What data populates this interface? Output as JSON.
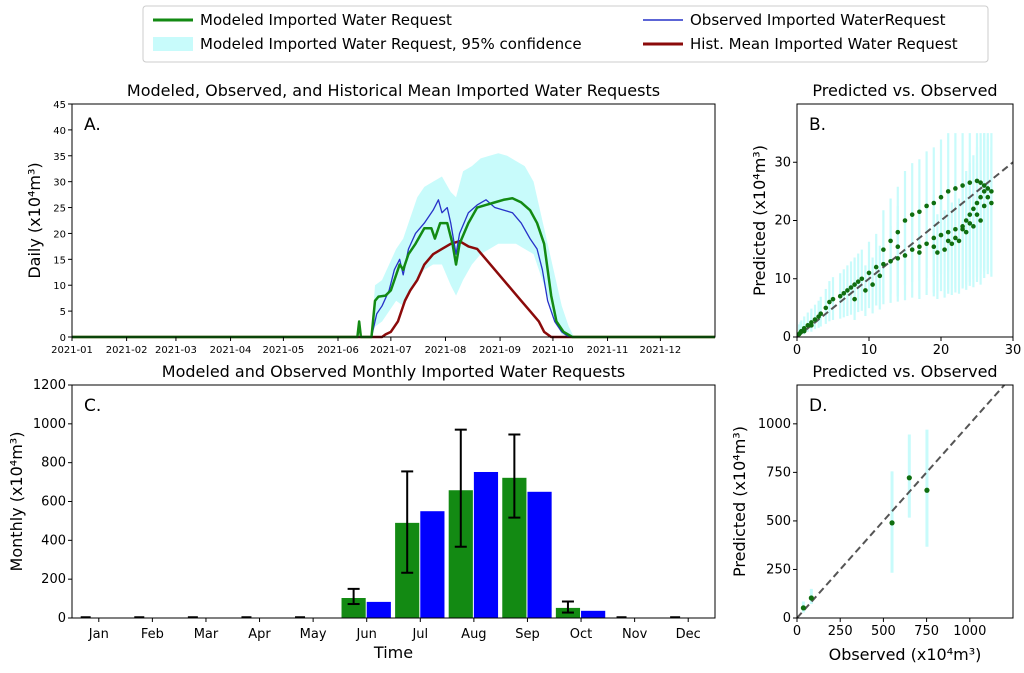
{
  "legend": {
    "items": [
      {
        "label": "Modeled Imported Water Request",
        "color": "#138a13",
        "kind": "line"
      },
      {
        "label": "Modeled Imported Water Request, 95% confidence",
        "color": "#c8fbfb",
        "kind": "patch"
      },
      {
        "label": "Observed Imported WaterRequest",
        "color": "#2732c8",
        "kind": "line"
      },
      {
        "label": "Hist. Mean Imported Water Request",
        "color": "#8b0a0a",
        "kind": "line"
      }
    ]
  },
  "chart_data": [
    {
      "id": "A",
      "type": "line",
      "letter": "A.",
      "title": "Modeled, Observed, and Historical Mean Imported Water Requests",
      "ylabel": "Daily (x10⁴m³)",
      "ylim": [
        0,
        45
      ],
      "yticks": [
        0,
        5,
        10,
        15,
        20,
        25,
        30,
        35,
        40,
        45
      ],
      "xlim": [
        0,
        365
      ],
      "xticks": [
        {
          "day": 0,
          "label": "2021-01"
        },
        {
          "day": 31,
          "label": "2021-02"
        },
        {
          "day": 59,
          "label": "2021-03"
        },
        {
          "day": 90,
          "label": "2021-04"
        },
        {
          "day": 120,
          "label": "2021-05"
        },
        {
          "day": 151,
          "label": "2021-06"
        },
        {
          "day": 181,
          "label": "2021-07"
        },
        {
          "day": 212,
          "label": "2021-08"
        },
        {
          "day": 243,
          "label": "2021-09"
        },
        {
          "day": 273,
          "label": "2021-10"
        },
        {
          "day": 304,
          "label": "2021-11"
        },
        {
          "day": 334,
          "label": "2021-12"
        }
      ],
      "series": [
        {
          "name": "Modeled Imported Water Request",
          "color": "#138a13",
          "width": 2.5,
          "points": [
            [
              0,
              0
            ],
            [
              162,
              0
            ],
            [
              163,
              3
            ],
            [
              164,
              0
            ],
            [
              170,
              0
            ],
            [
              172,
              7
            ],
            [
              174,
              7.8
            ],
            [
              178,
              8
            ],
            [
              181,
              9
            ],
            [
              184,
              12
            ],
            [
              186,
              14
            ],
            [
              188,
              13
            ],
            [
              191,
              16
            ],
            [
              195,
              18
            ],
            [
              200,
              21
            ],
            [
              204,
              21
            ],
            [
              206,
              19
            ],
            [
              209,
              22
            ],
            [
              213,
              22
            ],
            [
              216,
              18
            ],
            [
              218,
              14
            ],
            [
              220,
              18
            ],
            [
              225,
              22
            ],
            [
              230,
              25
            ],
            [
              235,
              25.5
            ],
            [
              240,
              26
            ],
            [
              245,
              26.5
            ],
            [
              250,
              26.8
            ],
            [
              255,
              26
            ],
            [
              260,
              24.5
            ],
            [
              264,
              22
            ],
            [
              268,
              18
            ],
            [
              270,
              13
            ],
            [
              272,
              8
            ],
            [
              275,
              3
            ],
            [
              279,
              1
            ],
            [
              284,
              0
            ],
            [
              365,
              0
            ]
          ]
        },
        {
          "name": "Observed Imported WaterRequest",
          "color": "#2732c8",
          "width": 1.3,
          "points": [
            [
              0,
              0
            ],
            [
              170,
              0
            ],
            [
              173,
              4.5
            ],
            [
              176,
              6
            ],
            [
              180,
              9
            ],
            [
              183,
              13
            ],
            [
              186,
              15
            ],
            [
              188,
              12
            ],
            [
              191,
              17
            ],
            [
              195,
              20
            ],
            [
              200,
              22
            ],
            [
              205,
              24.5
            ],
            [
              208,
              26.5
            ],
            [
              210,
              24
            ],
            [
              213,
              25
            ],
            [
              215,
              22
            ],
            [
              218,
              16
            ],
            [
              220,
              20
            ],
            [
              225,
              24
            ],
            [
              230,
              25.5
            ],
            [
              235,
              26.5
            ],
            [
              240,
              25
            ],
            [
              245,
              24.5
            ],
            [
              250,
              24
            ],
            [
              255,
              22
            ],
            [
              260,
              19
            ],
            [
              264,
              17
            ],
            [
              267,
              13
            ],
            [
              270,
              7
            ],
            [
              274,
              3
            ],
            [
              278,
              1
            ],
            [
              282,
              0
            ],
            [
              365,
              0
            ]
          ]
        },
        {
          "name": "Hist. Mean Imported Water Request",
          "color": "#8b0a0a",
          "width": 2.5,
          "points": [
            [
              0,
              0
            ],
            [
              176,
              0
            ],
            [
              178,
              0.5
            ],
            [
              181,
              1
            ],
            [
              185,
              3
            ],
            [
              189,
              7
            ],
            [
              192,
              9
            ],
            [
              196,
              11
            ],
            [
              200,
              14
            ],
            [
              205,
              16
            ],
            [
              210,
              17
            ],
            [
              215,
              18
            ],
            [
              220,
              18.5
            ],
            [
              225,
              17.5
            ],
            [
              230,
              17
            ],
            [
              235,
              15
            ],
            [
              240,
              13
            ],
            [
              245,
              11
            ],
            [
              250,
              9
            ],
            [
              255,
              7
            ],
            [
              260,
              5
            ],
            [
              265,
              3
            ],
            [
              268,
              1
            ],
            [
              272,
              0
            ],
            [
              365,
              0
            ]
          ]
        }
      ],
      "band": {
        "name": "Modeled Imported Water Request, 95% confidence",
        "color": "#c8fbfb",
        "upper": [
          [
            165,
            0
          ],
          [
            170,
            0
          ],
          [
            172,
            10
          ],
          [
            176,
            11
          ],
          [
            180,
            14
          ],
          [
            184,
            17
          ],
          [
            188,
            19
          ],
          [
            192,
            23
          ],
          [
            196,
            27
          ],
          [
            200,
            29
          ],
          [
            205,
            30
          ],
          [
            210,
            31
          ],
          [
            215,
            28
          ],
          [
            218,
            27
          ],
          [
            222,
            32
          ],
          [
            227,
            33
          ],
          [
            232,
            34.5
          ],
          [
            237,
            35
          ],
          [
            242,
            35.5
          ],
          [
            247,
            35
          ],
          [
            252,
            34
          ],
          [
            257,
            33
          ],
          [
            262,
            30
          ],
          [
            266,
            24
          ],
          [
            270,
            18
          ],
          [
            274,
            12
          ],
          [
            278,
            6
          ],
          [
            282,
            2
          ],
          [
            285,
            0
          ]
        ],
        "lower": [
          [
            165,
            0
          ],
          [
            170,
            0
          ],
          [
            172,
            2
          ],
          [
            176,
            3
          ],
          [
            180,
            5
          ],
          [
            184,
            7
          ],
          [
            188,
            6
          ],
          [
            192,
            9
          ],
          [
            196,
            11
          ],
          [
            200,
            13
          ],
          [
            205,
            14
          ],
          [
            210,
            14
          ],
          [
            215,
            10
          ],
          [
            218,
            8
          ],
          [
            222,
            11
          ],
          [
            227,
            14
          ],
          [
            232,
            16
          ],
          [
            237,
            17
          ],
          [
            242,
            18
          ],
          [
            247,
            18
          ],
          [
            252,
            18
          ],
          [
            257,
            17
          ],
          [
            262,
            16
          ],
          [
            266,
            12
          ],
          [
            270,
            8
          ],
          [
            274,
            3
          ],
          [
            278,
            0.5
          ],
          [
            282,
            0
          ],
          [
            285,
            0
          ]
        ]
      }
    },
    {
      "id": "B",
      "type": "scatter",
      "letter": "B.",
      "title": "Predicted vs. Observed",
      "ylabel": "Predicted (x10⁴m³)",
      "xlim": [
        0,
        30
      ],
      "ylim": [
        0,
        40
      ],
      "xticks": [
        0,
        10,
        20,
        30
      ],
      "yticks": [
        0,
        10,
        20,
        30
      ],
      "diagonal": true,
      "point_color": "#0f6e0f",
      "band_color": "#c8fbfb",
      "points": [
        [
          0.3,
          0.5
        ],
        [
          0.6,
          1
        ],
        [
          1,
          1.5
        ],
        [
          1.5,
          2
        ],
        [
          2,
          2.5
        ],
        [
          2.5,
          3
        ],
        [
          3,
          3.5
        ],
        [
          3.3,
          4
        ],
        [
          4,
          5
        ],
        [
          4.5,
          6
        ],
        [
          5,
          6.5
        ],
        [
          6,
          7
        ],
        [
          6.5,
          7.5
        ],
        [
          7,
          8
        ],
        [
          7.5,
          8.5
        ],
        [
          8,
          9
        ],
        [
          8.5,
          9.5
        ],
        [
          9,
          10
        ],
        [
          10,
          11
        ],
        [
          11,
          12
        ],
        [
          12,
          12.5
        ],
        [
          13,
          13
        ],
        [
          14,
          13.5
        ],
        [
          15,
          14
        ],
        [
          16,
          15
        ],
        [
          17,
          15.5
        ],
        [
          18,
          16
        ],
        [
          19,
          17
        ],
        [
          20,
          17.5
        ],
        [
          21,
          18
        ],
        [
          22,
          18.5
        ],
        [
          23,
          19
        ],
        [
          23.5,
          20
        ],
        [
          24,
          21
        ],
        [
          24.5,
          22
        ],
        [
          25,
          23
        ],
        [
          25.5,
          24
        ],
        [
          26,
          25
        ],
        [
          26.5,
          25.5
        ],
        [
          26,
          26
        ],
        [
          25.5,
          26.5
        ],
        [
          25,
          26.8
        ],
        [
          24,
          26.5
        ],
        [
          23,
          26
        ],
        [
          22,
          25.5
        ],
        [
          21,
          25
        ],
        [
          20,
          24
        ],
        [
          19,
          23
        ],
        [
          18,
          22.5
        ],
        [
          17,
          21.5
        ],
        [
          16,
          21
        ],
        [
          15,
          20
        ],
        [
          14,
          18
        ],
        [
          13,
          16.5
        ],
        [
          12,
          15
        ],
        [
          14,
          15.5
        ],
        [
          17,
          14.5
        ],
        [
          19,
          15.5
        ],
        [
          21,
          16.5
        ],
        [
          22,
          17
        ],
        [
          23,
          18.5
        ],
        [
          24,
          19.5
        ],
        [
          25,
          21
        ],
        [
          26,
          22.5
        ],
        [
          27,
          23
        ],
        [
          27,
          25
        ],
        [
          26.5,
          24
        ],
        [
          25.5,
          20
        ],
        [
          24.5,
          19
        ],
        [
          23.5,
          18
        ],
        [
          22.5,
          16.5
        ],
        [
          21.5,
          16
        ],
        [
          20.5,
          15
        ],
        [
          19.5,
          14.5
        ],
        [
          8,
          6.5
        ],
        [
          9.5,
          8
        ],
        [
          10.5,
          9
        ],
        [
          11.5,
          10.5
        ],
        [
          2,
          2
        ],
        [
          1,
          1
        ],
        [
          0.5,
          0.8
        ]
      ]
    },
    {
      "id": "C",
      "type": "bar",
      "letter": "C.",
      "title": "Modeled and Observed Monthly Imported Water Requests",
      "xlabel": "Time",
      "ylabel": "Monthly (x10⁴m³)",
      "ylim": [
        0,
        1200
      ],
      "yticks": [
        0,
        200,
        400,
        600,
        800,
        1000,
        1200
      ],
      "categories": [
        "Jan",
        "Feb",
        "Mar",
        "Apr",
        "May",
        "Jun",
        "Jul",
        "Aug",
        "Sep",
        "Oct",
        "Nov",
        "Dec"
      ],
      "series": [
        {
          "name": "Modeled Imported Water Request",
          "color": "#138a13",
          "values": [
            0,
            0,
            0,
            0,
            0,
            103,
            490,
            658,
            722,
            52,
            0,
            0
          ],
          "err_low": [
            0,
            0,
            0,
            0,
            0,
            72,
            233,
            367,
            517,
            28,
            0,
            0
          ],
          "err_high": [
            0,
            0,
            0,
            0,
            0,
            150,
            755,
            970,
            945,
            85,
            0,
            0
          ]
        },
        {
          "name": "Observed Imported WaterRequest",
          "color": "#0000ff",
          "values": [
            0,
            0,
            0,
            0,
            0,
            83,
            550,
            752,
            650,
            37,
            0,
            0
          ]
        }
      ]
    },
    {
      "id": "D",
      "type": "scatter",
      "letter": "D.",
      "title": "Predicted vs. Observed",
      "xlabel": "Observed (x10⁴m³)",
      "ylabel": "Predicted (x10⁴m³)",
      "xlim": [
        0,
        1250
      ],
      "ylim": [
        0,
        1200
      ],
      "xticks": [
        0,
        250,
        500,
        750,
        1000
      ],
      "yticks": [
        0,
        250,
        500,
        750,
        1000
      ],
      "diagonal": true,
      "point_color": "#0f6e0f",
      "band_color": "#c8fbfb",
      "points": [
        [
          37,
          52
        ],
        [
          83,
          103
        ],
        [
          550,
          490
        ],
        [
          650,
          722
        ],
        [
          752,
          658
        ]
      ],
      "bands": [
        [
          37,
          28,
          85
        ],
        [
          83,
          72,
          150
        ],
        [
          550,
          233,
          755
        ],
        [
          650,
          517,
          945
        ],
        [
          752,
          367,
          970
        ]
      ]
    }
  ]
}
